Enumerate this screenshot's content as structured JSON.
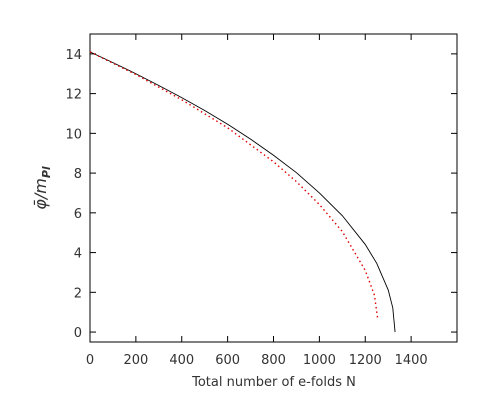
{
  "chart_data": {
    "type": "line",
    "xlabel": "Total number of e-folds N",
    "ylabel": "φ̄/m",
    "ylabel_sub": "Pl",
    "xlim": [
      0,
      1600
    ],
    "xticks": [
      0,
      200,
      400,
      600,
      800,
      1000,
      1200,
      1400
    ],
    "ylim": [
      -0.5,
      15
    ],
    "yticks": [
      0,
      2,
      4,
      6,
      8,
      10,
      12,
      14
    ],
    "grid": false,
    "series": [
      {
        "color": "#000000",
        "dash": "solid",
        "x": [
          0,
          100,
          200,
          300,
          400,
          500,
          600,
          700,
          800,
          900,
          1000,
          1100,
          1200,
          1250,
          1300,
          1320,
          1330
        ],
        "values": [
          14.1,
          13.56,
          13.0,
          12.41,
          11.8,
          11.15,
          10.46,
          9.71,
          8.9,
          8.02,
          7.0,
          5.86,
          4.41,
          3.46,
          2.12,
          1.22,
          0
        ]
      },
      {
        "color": "#e00000",
        "dash": "dotted",
        "x": [
          0,
          200,
          400,
          600,
          800,
          900,
          1000,
          1100,
          1200,
          1240,
          1255
        ],
        "values": [
          14.1,
          12.96,
          11.69,
          10.28,
          8.57,
          7.57,
          6.42,
          5.06,
          3.1,
          1.86,
          0.6
        ]
      }
    ]
  }
}
